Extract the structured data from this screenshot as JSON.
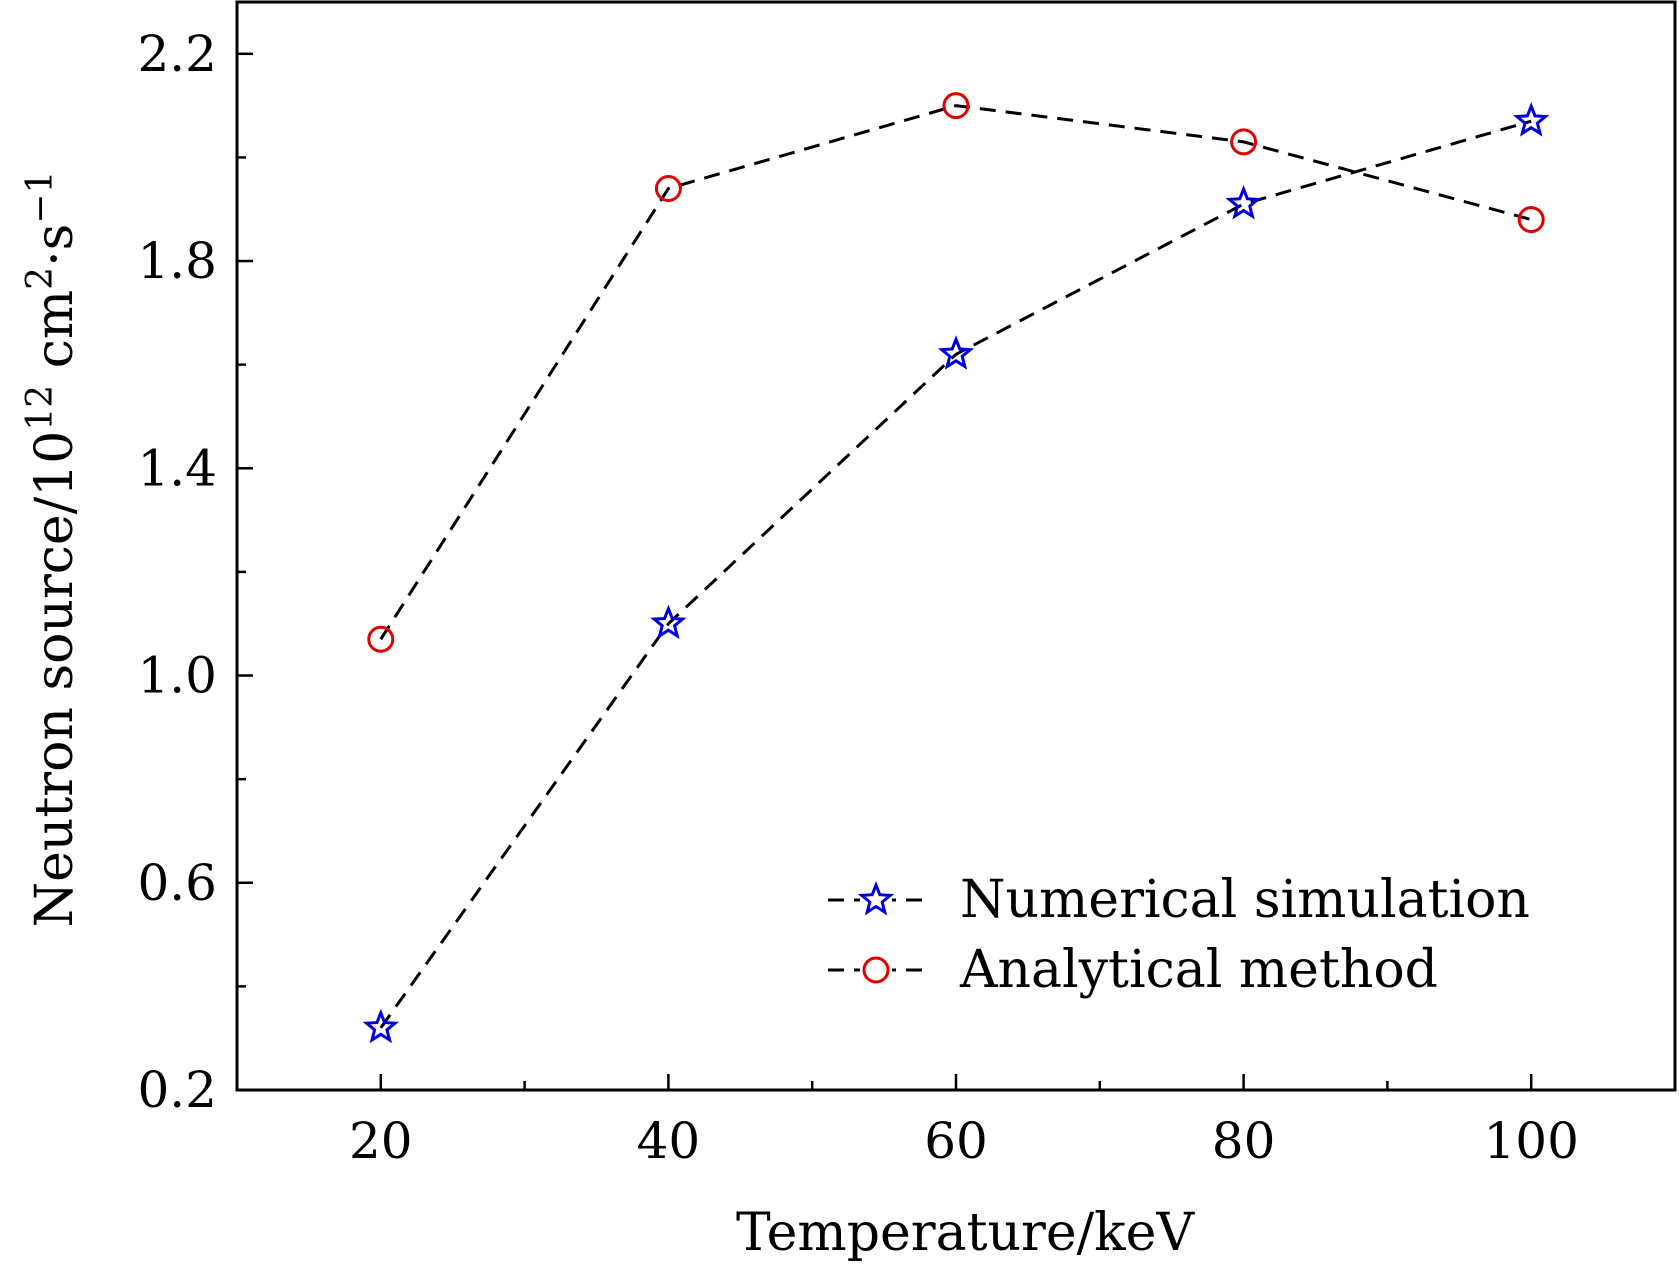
{
  "chart_data": {
    "type": "line",
    "title": "",
    "xlabel": "Temperature/keV",
    "ylabel": {
      "base": "Neutron source/10",
      "exp1": "12",
      "mid": " cm",
      "exp2": "2",
      "dot": "·s",
      "exp3": "−1"
    },
    "xlim": [
      10,
      110
    ],
    "ylim": [
      0.2,
      2.3
    ],
    "x_ticks": [
      20,
      40,
      60,
      80,
      100
    ],
    "x_tick_labels": [
      "20",
      "40",
      "60",
      "80",
      "100"
    ],
    "x_minor_ticks": [
      30,
      50,
      70,
      90
    ],
    "y_ticks": [
      0.2,
      0.6,
      1.0,
      1.4,
      1.8,
      2.2
    ],
    "y_tick_labels": [
      "0.2",
      "0.6",
      "1.0",
      "1.4",
      "1.8",
      "2.2"
    ],
    "y_minor_ticks": [
      0.4,
      0.8,
      1.2,
      1.6,
      2.0
    ],
    "grid": false,
    "legend_position": "lower-right",
    "series": [
      {
        "name": "Numerical simulation",
        "marker": "star",
        "color": "#0000dd",
        "line_color": "#000000",
        "line_style": "dashed",
        "x": [
          20,
          40,
          60,
          80,
          100
        ],
        "y": [
          0.32,
          1.1,
          1.62,
          1.91,
          2.07
        ]
      },
      {
        "name": "Analytical method",
        "marker": "circle",
        "color": "#e00000",
        "line_color": "#000000",
        "line_style": "dashed",
        "x": [
          20,
          40,
          60,
          80,
          100
        ],
        "y": [
          1.07,
          1.94,
          2.1,
          2.03,
          1.88
        ]
      }
    ]
  }
}
